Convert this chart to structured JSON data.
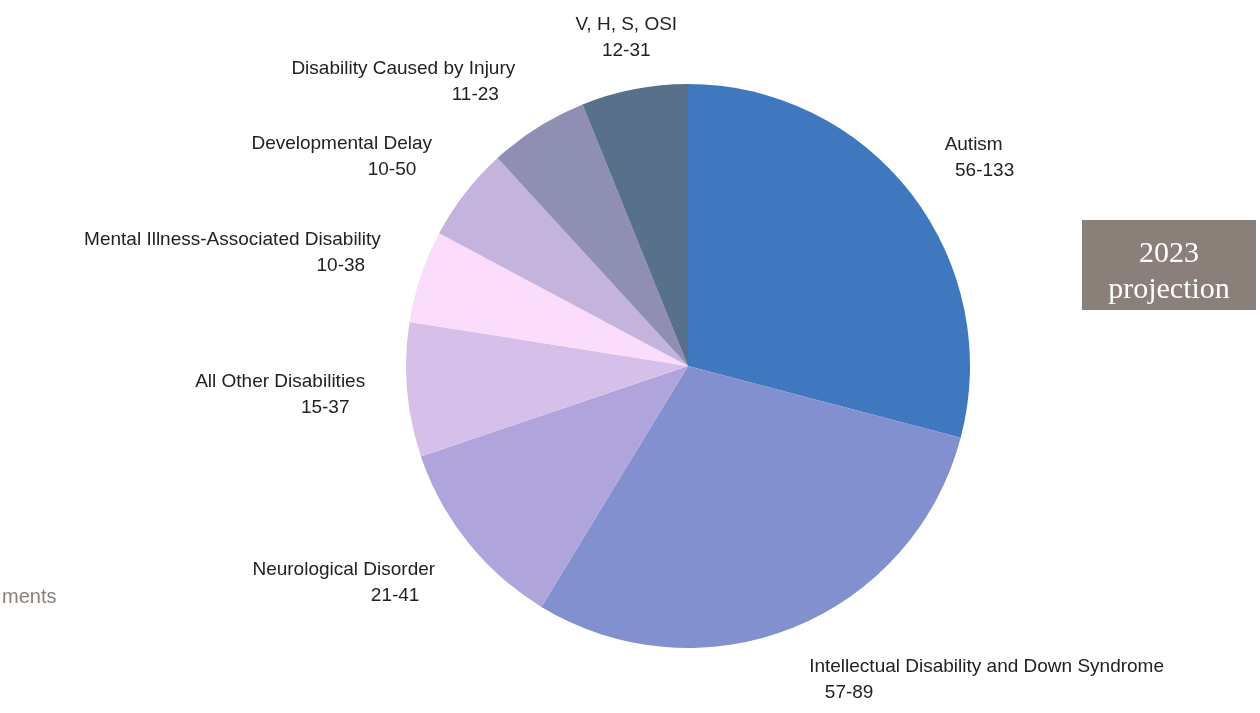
{
  "chart_data": {
    "type": "pie",
    "categories": [
      "Autism",
      "Intellectual Disability and Down Syndrome",
      "Neurological Disorder",
      "All Other Disabilities",
      "Mental Illness-Associated Disability",
      "Developmental Delay",
      "Disability Caused by Injury",
      "V, H, S, OSI"
    ],
    "values": [
      29.1,
      29.6,
      11.1,
      7.7,
      5.3,
      5.4,
      5.7,
      6.1
    ],
    "colors": [
      "#3f78bf",
      "#8290cf",
      "#b0a4dc",
      "#d6c0ea",
      "#fbdcfb",
      "#c4b3dc",
      "#8f8fb3",
      "#587089"
    ],
    "value_labels": [
      "56-133",
      "57-89",
      "21-41",
      "15-37",
      "10-38",
      "10-50",
      "11-23",
      "12-31"
    ],
    "annotations": [
      "2023 projection",
      "ments"
    ],
    "legend": false
  }
}
